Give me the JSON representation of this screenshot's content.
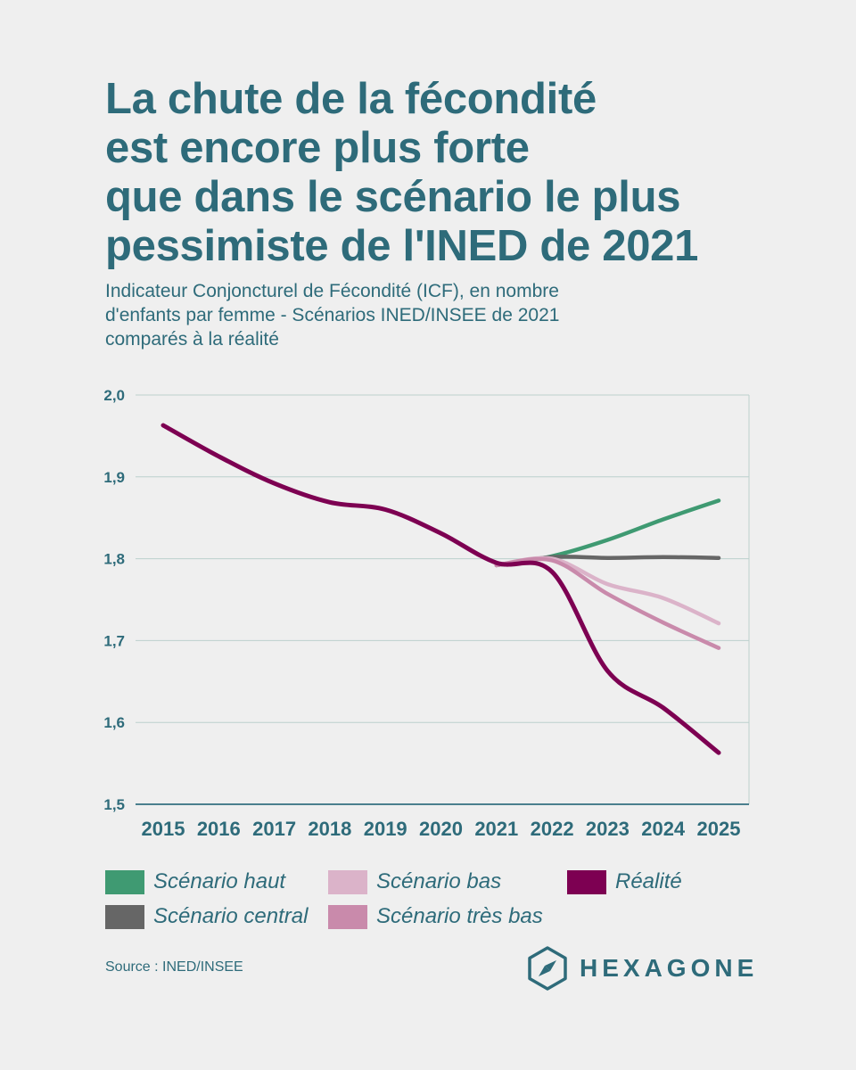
{
  "header": {
    "title_lines": [
      "La chute de la fécondité",
      "est encore plus forte",
      "que dans le scénario le plus",
      "pessimiste de l'INED de 2021"
    ],
    "subtitle_lines": [
      "Indicateur Conjoncturel de Fécondité (ICF), en nombre",
      "d'enfants par femme - Scénarios INED/INSEE de 2021",
      "comparés à la réalité"
    ]
  },
  "chart_data": {
    "type": "line",
    "title": "La chute de la fécondité est encore plus forte que dans le scénario le plus pessimiste de l'INED de 2021",
    "subtitle": "Indicateur Conjoncturel de Fécondité (ICF), en nombre d'enfants par femme - Scénarios INED/INSEE de 2021 comparés à la réalité",
    "xlabel": "",
    "ylabel": "",
    "x": [
      "2015",
      "2016",
      "2017",
      "2018",
      "2019",
      "2020",
      "2021",
      "2022",
      "2023",
      "2024",
      "2025"
    ],
    "ylim": [
      1.5,
      2.0
    ],
    "yticks": [
      "2,0",
      "1,9",
      "1,8",
      "1,7",
      "1,6",
      "1,5"
    ],
    "ytick_values": [
      2.0,
      1.9,
      1.8,
      1.7,
      1.6,
      1.5
    ],
    "grid": true,
    "legend_position": "bottom",
    "series": [
      {
        "name": "Scénario haut",
        "color": "#3f9a72",
        "x": [
          2021,
          2022,
          2023,
          2024,
          2025
        ],
        "values": [
          1.792,
          1.803,
          1.823,
          1.848,
          1.871
        ]
      },
      {
        "name": "Scénario central",
        "color": "#666666",
        "x": [
          2021,
          2022,
          2023,
          2024,
          2025
        ],
        "values": [
          1.792,
          1.802,
          1.801,
          1.802,
          1.801
        ]
      },
      {
        "name": "Scénario bas",
        "color": "#dbb3c9",
        "x": [
          2021,
          2022,
          2023,
          2024,
          2025
        ],
        "values": [
          1.792,
          1.8,
          1.769,
          1.752,
          1.721
        ]
      },
      {
        "name": "Scénario très bas",
        "color": "#c98aab",
        "x": [
          2021,
          2022,
          2023,
          2024,
          2025
        ],
        "values": [
          1.792,
          1.798,
          1.757,
          1.722,
          1.691
        ]
      },
      {
        "name": "Réalité",
        "color": "#7d0052",
        "x": [
          2015,
          2016,
          2017,
          2018,
          2019,
          2020,
          2021,
          2022,
          2023,
          2024,
          2025
        ],
        "values": [
          1.963,
          1.925,
          1.892,
          1.869,
          1.86,
          1.831,
          1.795,
          1.784,
          1.663,
          1.618,
          1.563
        ]
      }
    ]
  },
  "legend": [
    {
      "label": "Scénario haut",
      "color": "#3f9a72"
    },
    {
      "label": "Scénario bas",
      "color": "#dbb3c9"
    },
    {
      "label": "Réalité",
      "color": "#7d0052"
    },
    {
      "label": "Scénario central",
      "color": "#666666"
    },
    {
      "label": "Scénario très bas",
      "color": "#c98aab"
    }
  ],
  "footer": {
    "source": "Source : INED/INSEE",
    "brand": "HEXAGONE"
  },
  "colors": {
    "text": "#2e6b7a",
    "background": "#efefef",
    "grid": "#bcd0cd"
  }
}
